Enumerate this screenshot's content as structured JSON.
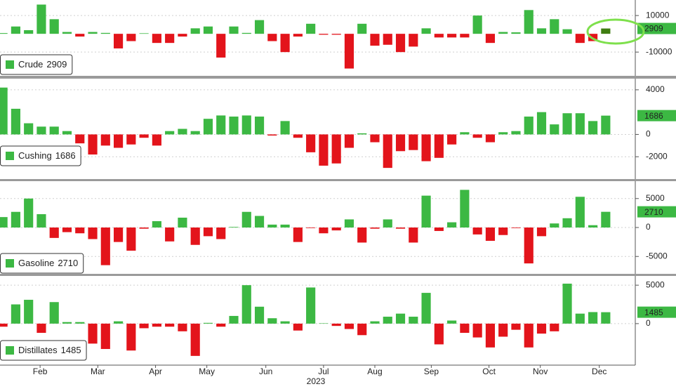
{
  "x": [
    1,
    2,
    3,
    4,
    5,
    6,
    7,
    8,
    9,
    10,
    11,
    12,
    13,
    14,
    15,
    16,
    17,
    18,
    19,
    20,
    21,
    22,
    23,
    24,
    25,
    26,
    27,
    28,
    29,
    30,
    31,
    32,
    33,
    34,
    35,
    36,
    37,
    38,
    39,
    40,
    41,
    42,
    43,
    44,
    45,
    46,
    47,
    48
  ],
  "x_axis": {
    "xlim": [
      0.5,
      48.5
    ],
    "xticks": [
      {
        "value": 3.9,
        "label": "Feb"
      },
      {
        "value": 8.4,
        "label": "Mar"
      },
      {
        "value": 12.9,
        "label": "Apr"
      },
      {
        "value": 16.9,
        "label": "May"
      },
      {
        "value": 21.5,
        "label": "Jun"
      },
      {
        "value": 26.0,
        "label": "Jul"
      },
      {
        "value": 30.0,
        "label": "Aug"
      },
      {
        "value": 34.4,
        "label": "Sep"
      },
      {
        "value": 38.9,
        "label": "Oct"
      },
      {
        "value": 42.9,
        "label": "Nov"
      },
      {
        "value": 47.5,
        "label": "Dec"
      }
    ],
    "label": "2023"
  },
  "colors": {
    "positive": "#3cb843",
    "negative": "#e3141b",
    "highlight": "#3f7d12"
  },
  "chart_data": [
    {
      "type": "bar",
      "ylim": [
        -23000,
        18500
      ],
      "yticks": [
        -10000,
        10000
      ],
      "grid": true,
      "highlight_last": true,
      "series": [
        {
          "name": "Crude",
          "values": [
            400,
            4000,
            2000,
            16000,
            8000,
            1000,
            -1500,
            1000,
            500,
            -8000,
            -4000,
            300,
            -5000,
            -5000,
            -1500,
            3000,
            4000,
            -13000,
            4000,
            500,
            7500,
            -4000,
            -10000,
            -1500,
            5500,
            -500,
            -500,
            -19000,
            5500,
            -6500,
            -6000,
            -10000,
            -7000,
            3000,
            -2000,
            -2000,
            -2000,
            10000,
            -5000,
            1000,
            800,
            13000,
            3000,
            8000,
            2500,
            -5000,
            -4000,
            2909
          ]
        }
      ]
    },
    {
      "type": "bar",
      "ylim": [
        -4000,
        5000
      ],
      "yticks": [
        -2000,
        0,
        4000
      ],
      "grid": true,
      "series": [
        {
          "name": "Cushing",
          "values": [
            4200,
            2300,
            1000,
            700,
            700,
            300,
            -800,
            -1800,
            -1000,
            -1200,
            -900,
            -300,
            -1000,
            300,
            500,
            300,
            1400,
            1700,
            1600,
            1700,
            1600,
            -100,
            1200,
            -300,
            -1600,
            -2800,
            -2600,
            -1200,
            100,
            -700,
            -3000,
            -1500,
            -1400,
            -2400,
            -2100,
            -900,
            200,
            -300,
            -700,
            200,
            300,
            1600,
            2000,
            900,
            1900,
            1900,
            1200,
            1686
          ]
        }
      ]
    },
    {
      "type": "bar",
      "ylim": [
        -8000,
        8000
      ],
      "yticks": [
        -5000,
        0,
        5000
      ],
      "grid": true,
      "series": [
        {
          "name": "Gasoline",
          "values": [
            1800,
            2700,
            5000,
            2300,
            -1800,
            -800,
            -1000,
            -2000,
            -6500,
            -2500,
            -4000,
            -200,
            1100,
            -2400,
            1700,
            -3000,
            -1500,
            -2000,
            100,
            2700,
            2000,
            500,
            500,
            -2500,
            -100,
            -1000,
            -500,
            1400,
            -2600,
            -200,
            1400,
            -200,
            -2600,
            5500,
            -600,
            900,
            6500,
            -1200,
            -2300,
            -1300,
            -100,
            -6200,
            -1500,
            700,
            1600,
            5300,
            400,
            2710
          ]
        }
      ]
    },
    {
      "type": "bar",
      "ylim": [
        -5400,
        6200
      ],
      "yticks": [
        0,
        5000
      ],
      "grid": true,
      "series": [
        {
          "name": "Distillates",
          "values": [
            -400,
            2500,
            3100,
            -1200,
            2800,
            200,
            200,
            -2600,
            -3300,
            300,
            -3500,
            -600,
            -400,
            -400,
            -1000,
            -4200,
            100,
            -400,
            1000,
            5000,
            2200,
            700,
            300,
            -900,
            4700,
            50,
            -300,
            -700,
            -1500,
            300,
            900,
            1300,
            900,
            4000,
            -2700,
            400,
            -1200,
            -1800,
            -3100,
            -1700,
            -800,
            -3100,
            -1300,
            -1000,
            5200,
            1300,
            1500,
            1485
          ]
        }
      ]
    }
  ]
}
